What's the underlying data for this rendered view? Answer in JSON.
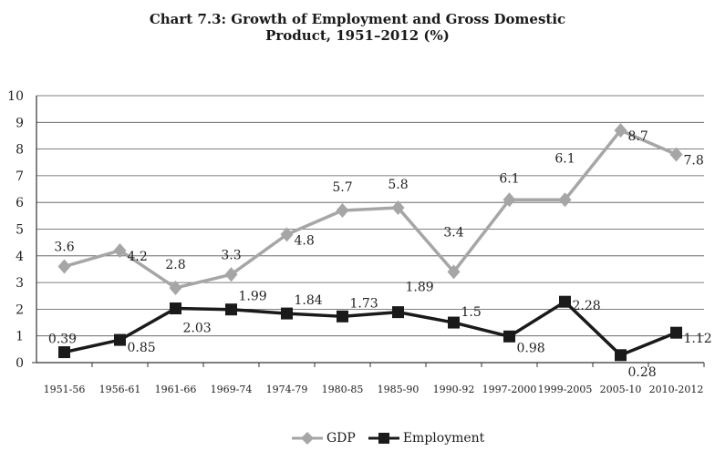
{
  "chart_data": {
    "type": "line",
    "title": "Chart 7.3: Growth of Employment and Gross Domestic",
    "subtitle": "Product, 1951–2012 (%)",
    "xlabel": "",
    "ylabel": "",
    "categories": [
      "1951-56",
      "1956-61",
      "1961-66",
      "1969-74",
      "1974-79",
      "1980-85",
      "1985-90",
      "1990-92",
      "1997-2000",
      "1999-2005",
      "2005-10",
      "2010-2012"
    ],
    "ylim": [
      0,
      10
    ],
    "yticks": [
      "0",
      "1",
      "2",
      "3",
      "4",
      "5",
      "6",
      "7",
      "8",
      "9",
      "10"
    ],
    "grid": true,
    "legend_position": "bottom",
    "series": [
      {
        "name": "GDP",
        "color": "#a6a6a6",
        "marker": "diamond",
        "values": [
          3.6,
          4.2,
          2.8,
          3.3,
          4.8,
          5.7,
          5.8,
          3.4,
          6.1,
          6.1,
          8.7,
          7.8
        ],
        "labels": [
          "3.6",
          "4.2",
          "2.8",
          "3.3",
          "4.8",
          "5.7",
          "5.8",
          "3.4",
          "6.1",
          "6.1",
          "8.7",
          "7.8"
        ]
      },
      {
        "name": "Employment",
        "color": "#1a1a1a",
        "marker": "square",
        "values": [
          0.39,
          0.85,
          2.03,
          1.99,
          1.84,
          1.73,
          1.89,
          1.5,
          0.98,
          2.28,
          0.28,
          1.12
        ],
        "labels": [
          "0.39",
          "0.85",
          "2.03",
          "1.99",
          "1.84",
          "1.73",
          "1.89",
          "1.5",
          "0.98",
          "2.28",
          "0.28",
          "1.12"
        ]
      }
    ]
  }
}
